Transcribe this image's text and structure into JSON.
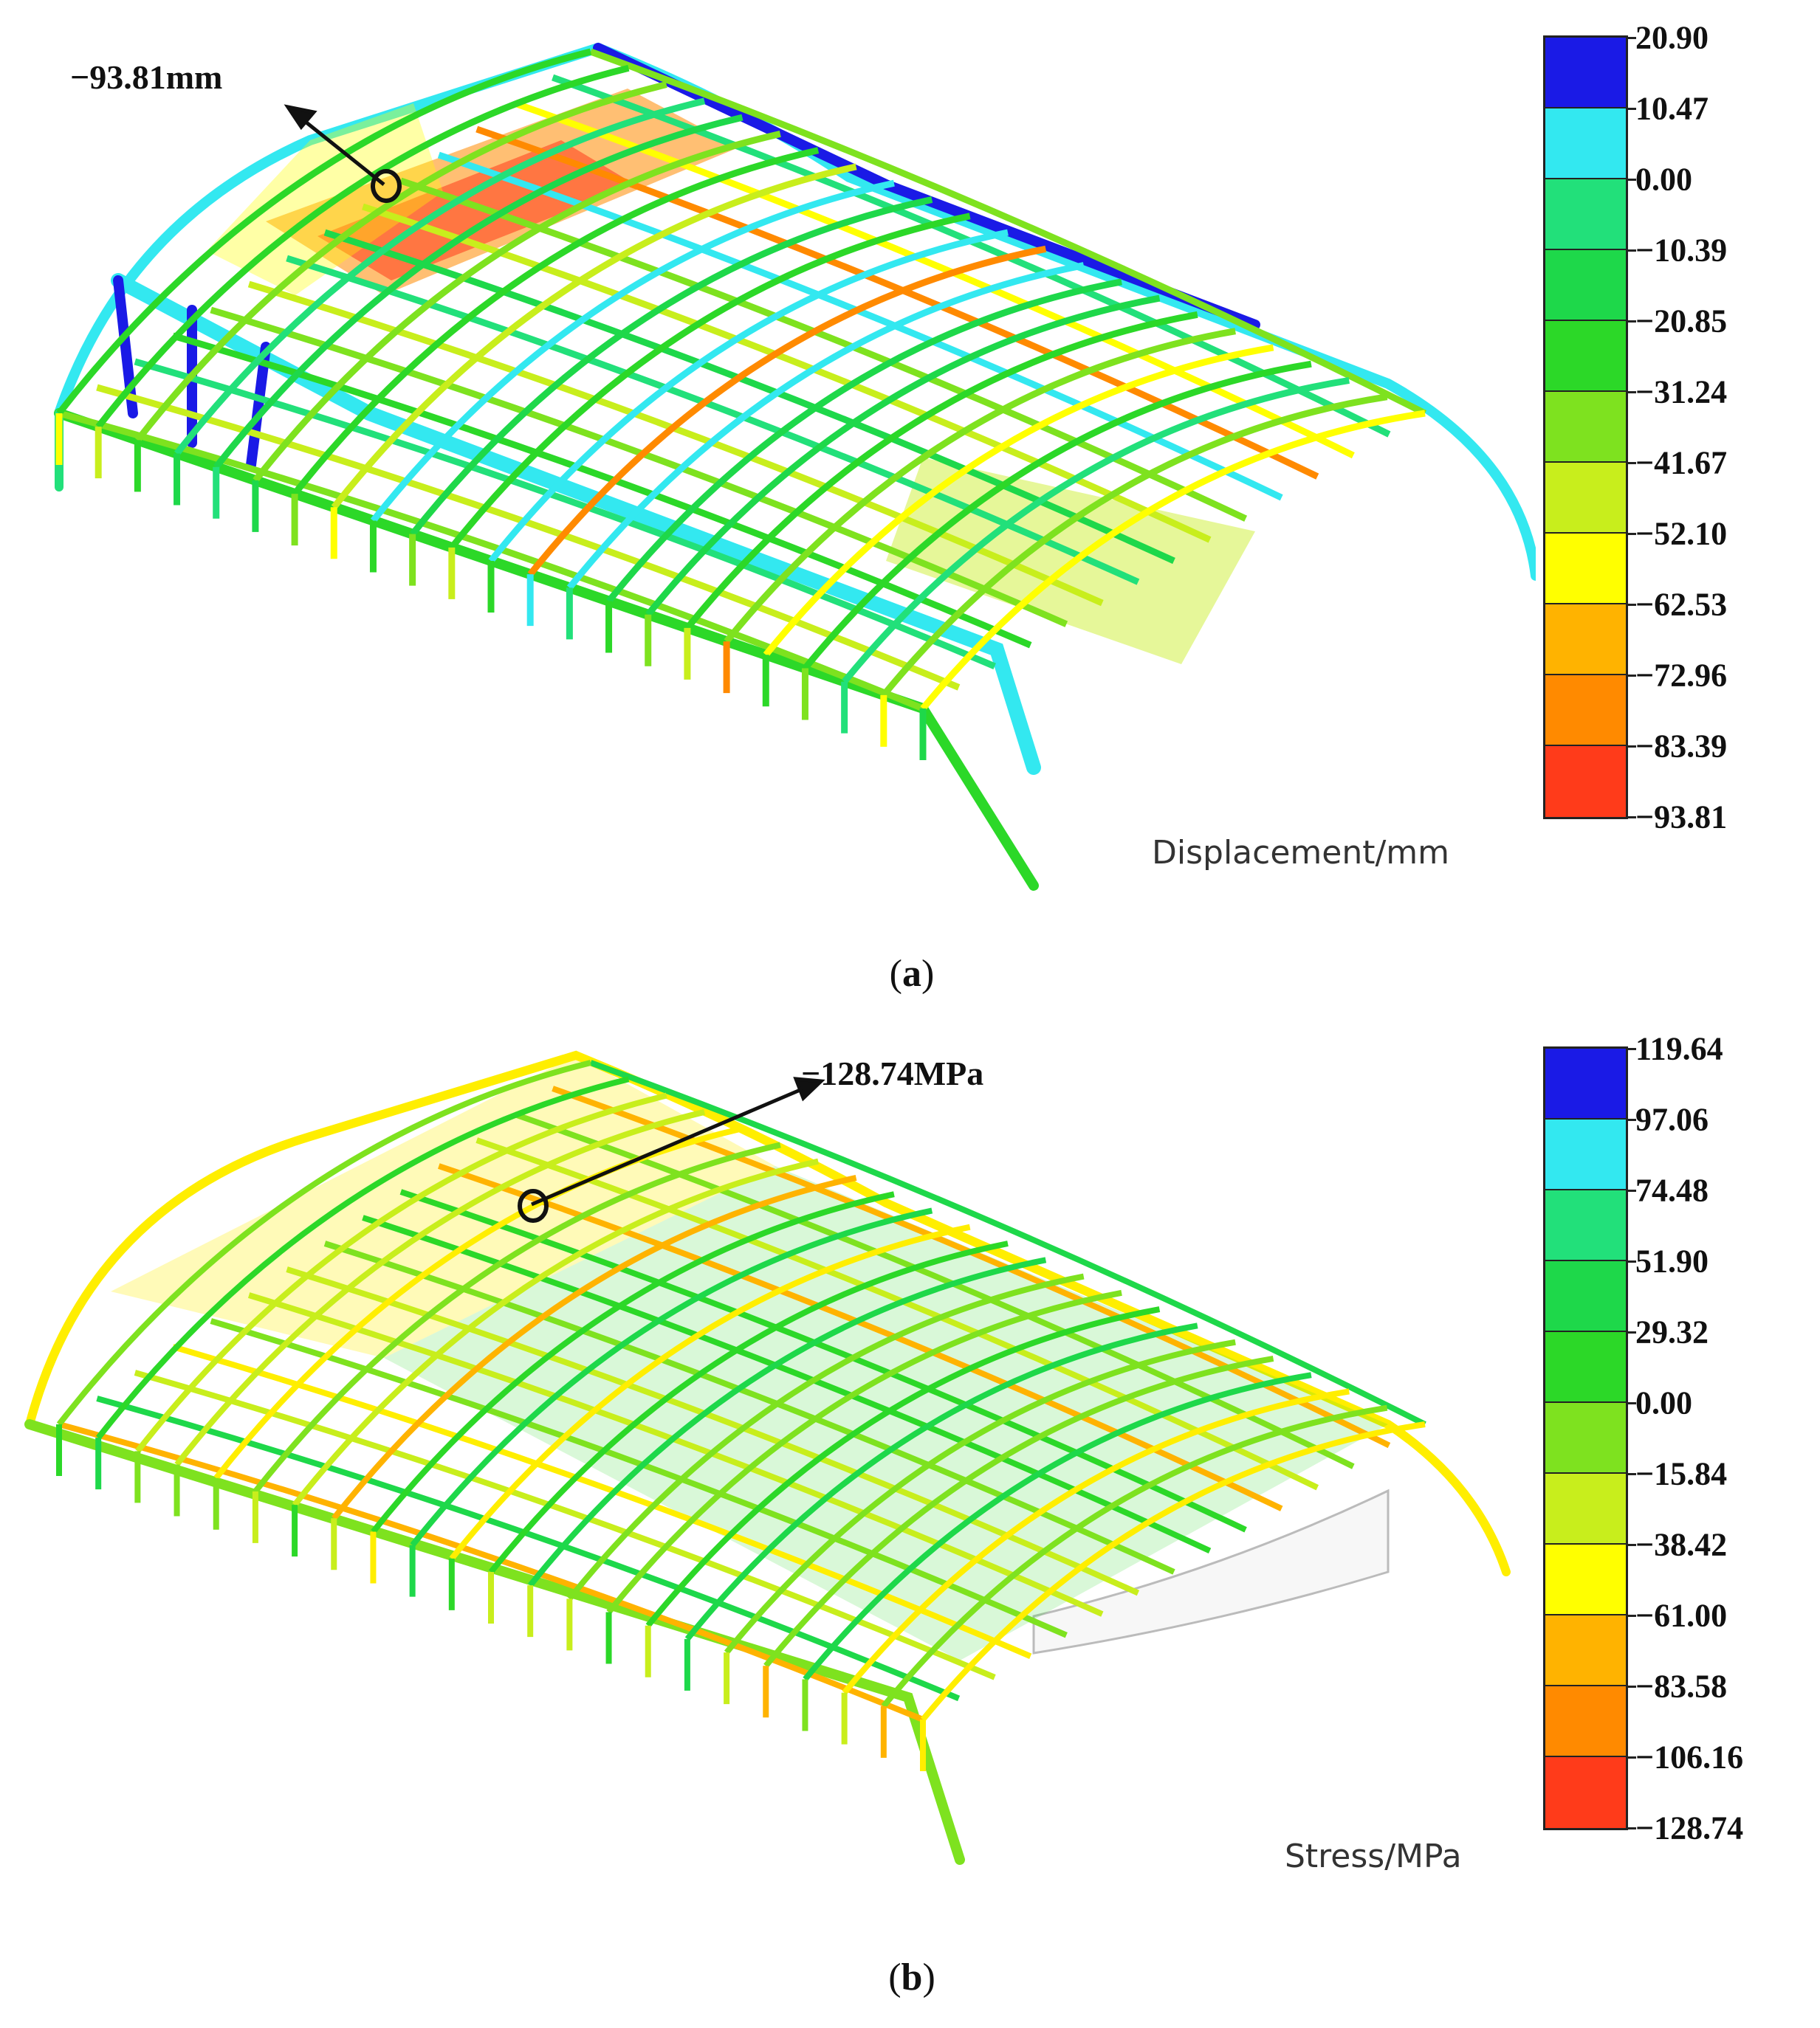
{
  "panels": [
    {
      "id": "a",
      "caption_letter": "a",
      "callout": "−93.81mm",
      "legend_unit": "Displacement/mm",
      "legend": {
        "ticks": [
          "20.90",
          "10.47",
          "0.00",
          "−10.39",
          "−20.85",
          "−31.24",
          "−41.67",
          "−52.10",
          "−62.53",
          "−72.96",
          "−83.39",
          "−93.81"
        ],
        "colors": [
          "#1a1ae6",
          "#33e8f0",
          "#22e07a",
          "#1ed84a",
          "#2cd828",
          "#7ee21f",
          "#c8ee1c",
          "#ffff00",
          "#ffb300",
          "#ff8a00",
          "#ff3b1a"
        ]
      }
    },
    {
      "id": "b",
      "caption_letter": "b",
      "callout": "−128.74MPa",
      "legend_unit": "Stress/MPa",
      "legend": {
        "ticks": [
          "119.64",
          "97.06",
          "74.48",
          "51.90",
          "29.32",
          "0.00",
          "−15.84",
          "−38.42",
          "−61.00",
          "−83.58",
          "−106.16",
          "−128.74"
        ],
        "colors": [
          "#1a1ae6",
          "#33e8f0",
          "#22e07a",
          "#1ed84a",
          "#2cd828",
          "#7ee21f",
          "#c8ee1c",
          "#ffff00",
          "#ffb300",
          "#ff8a00",
          "#ff3b1a"
        ]
      }
    }
  ]
}
